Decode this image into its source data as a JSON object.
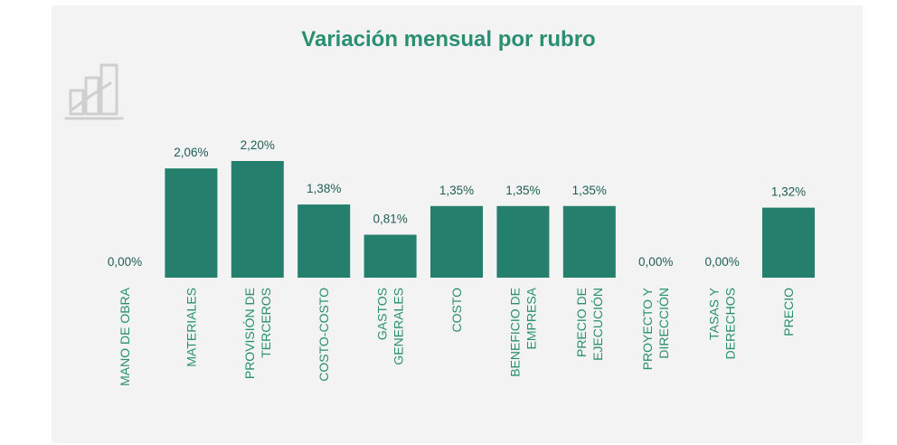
{
  "chart_data": {
    "type": "bar",
    "title": "Variación mensual por rubro",
    "categories": [
      [
        "MANO DE OBRA"
      ],
      [
        "MATERIALES"
      ],
      [
        "PROVISIÓN DE",
        "TERCEROS"
      ],
      [
        "COSTO-COSTO"
      ],
      [
        "GASTOS",
        "GENERALES"
      ],
      [
        "COSTO"
      ],
      [
        "BENEFICIO DE",
        "EMPRESA"
      ],
      [
        "PRECIO DE",
        "EJECUCIÓN"
      ],
      [
        "PROYECTO Y",
        "DIRECCIÓN"
      ],
      [
        "TASAS Y",
        "DERECHOS"
      ],
      [
        "PRECIO"
      ]
    ],
    "values": [
      0.0,
      2.06,
      2.2,
      1.38,
      0.81,
      1.35,
      1.35,
      1.35,
      0.0,
      0.0,
      1.32
    ],
    "value_labels": [
      "0,00%",
      "2,06%",
      "2,20%",
      "1,38%",
      "0,81%",
      "1,35%",
      "1,35%",
      "1,35%",
      "0,00%",
      "0,00%",
      "1,32%"
    ],
    "ylim": [
      0,
      2.2
    ],
    "grid": false,
    "legend": "none",
    "colors": {
      "bar": "#24806c",
      "title": "#2a8f70",
      "label": "#1f5e50",
      "category": "#2a8f70",
      "background": "#f3f3f3",
      "icon": "#cfcfcf"
    }
  }
}
